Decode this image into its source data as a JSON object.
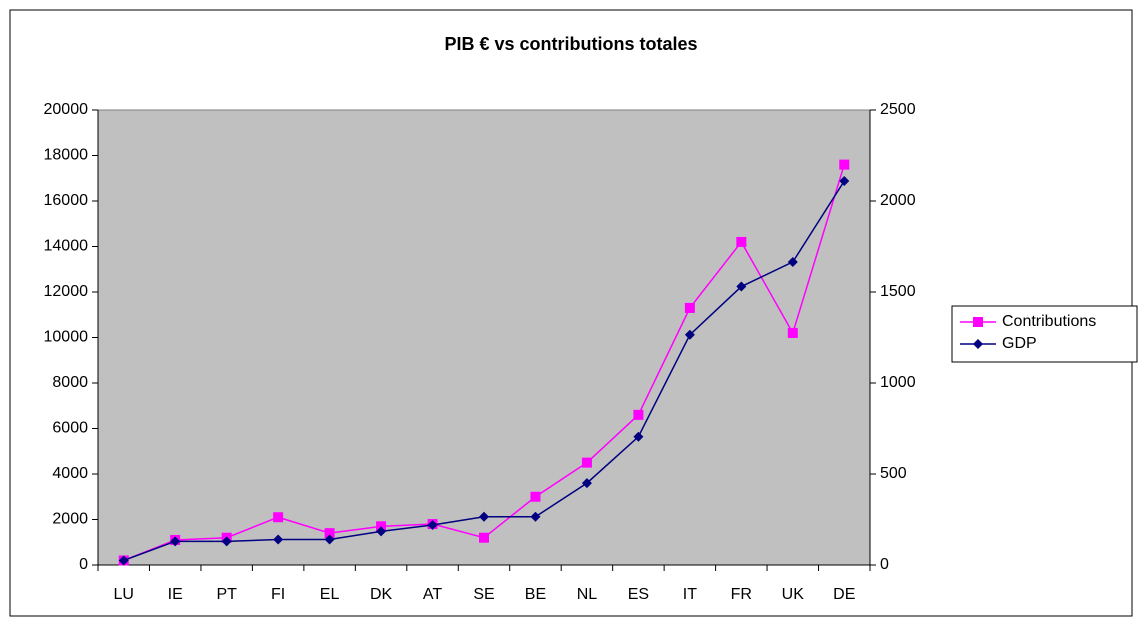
{
  "chart_data": {
    "type": "line",
    "title": "PIB € vs contributions totales",
    "categories": [
      "LU",
      "IE",
      "PT",
      "FI",
      "EL",
      "DK",
      "AT",
      "SE",
      "BE",
      "NL",
      "ES",
      "IT",
      "FR",
      "UK",
      "DE"
    ],
    "series": [
      {
        "name": "Contributions",
        "color": "#ff00ff",
        "marker": "square",
        "axis": "y",
        "values": [
          200,
          1100,
          1200,
          2100,
          1400,
          1700,
          1800,
          1200,
          3000,
          4500,
          6600,
          11300,
          14200,
          10200,
          17600
        ]
      },
      {
        "name": "GDP",
        "color": "#000080",
        "marker": "diamond",
        "axis": "y2",
        "values": [
          25,
          130,
          130,
          140,
          140,
          185,
          220,
          265,
          265,
          450,
          705,
          1265,
          1530,
          1665,
          2110
        ]
      }
    ],
    "ylim": [
      0,
      20000
    ],
    "yticks": [
      0,
      2000,
      4000,
      6000,
      8000,
      10000,
      12000,
      14000,
      16000,
      18000,
      20000
    ],
    "y2lim": [
      0,
      2500
    ],
    "y2ticks": [
      0,
      500,
      1000,
      1500,
      2000,
      2500
    ],
    "grid": false,
    "legend": "right",
    "plot_background": "#c0c0c0"
  }
}
